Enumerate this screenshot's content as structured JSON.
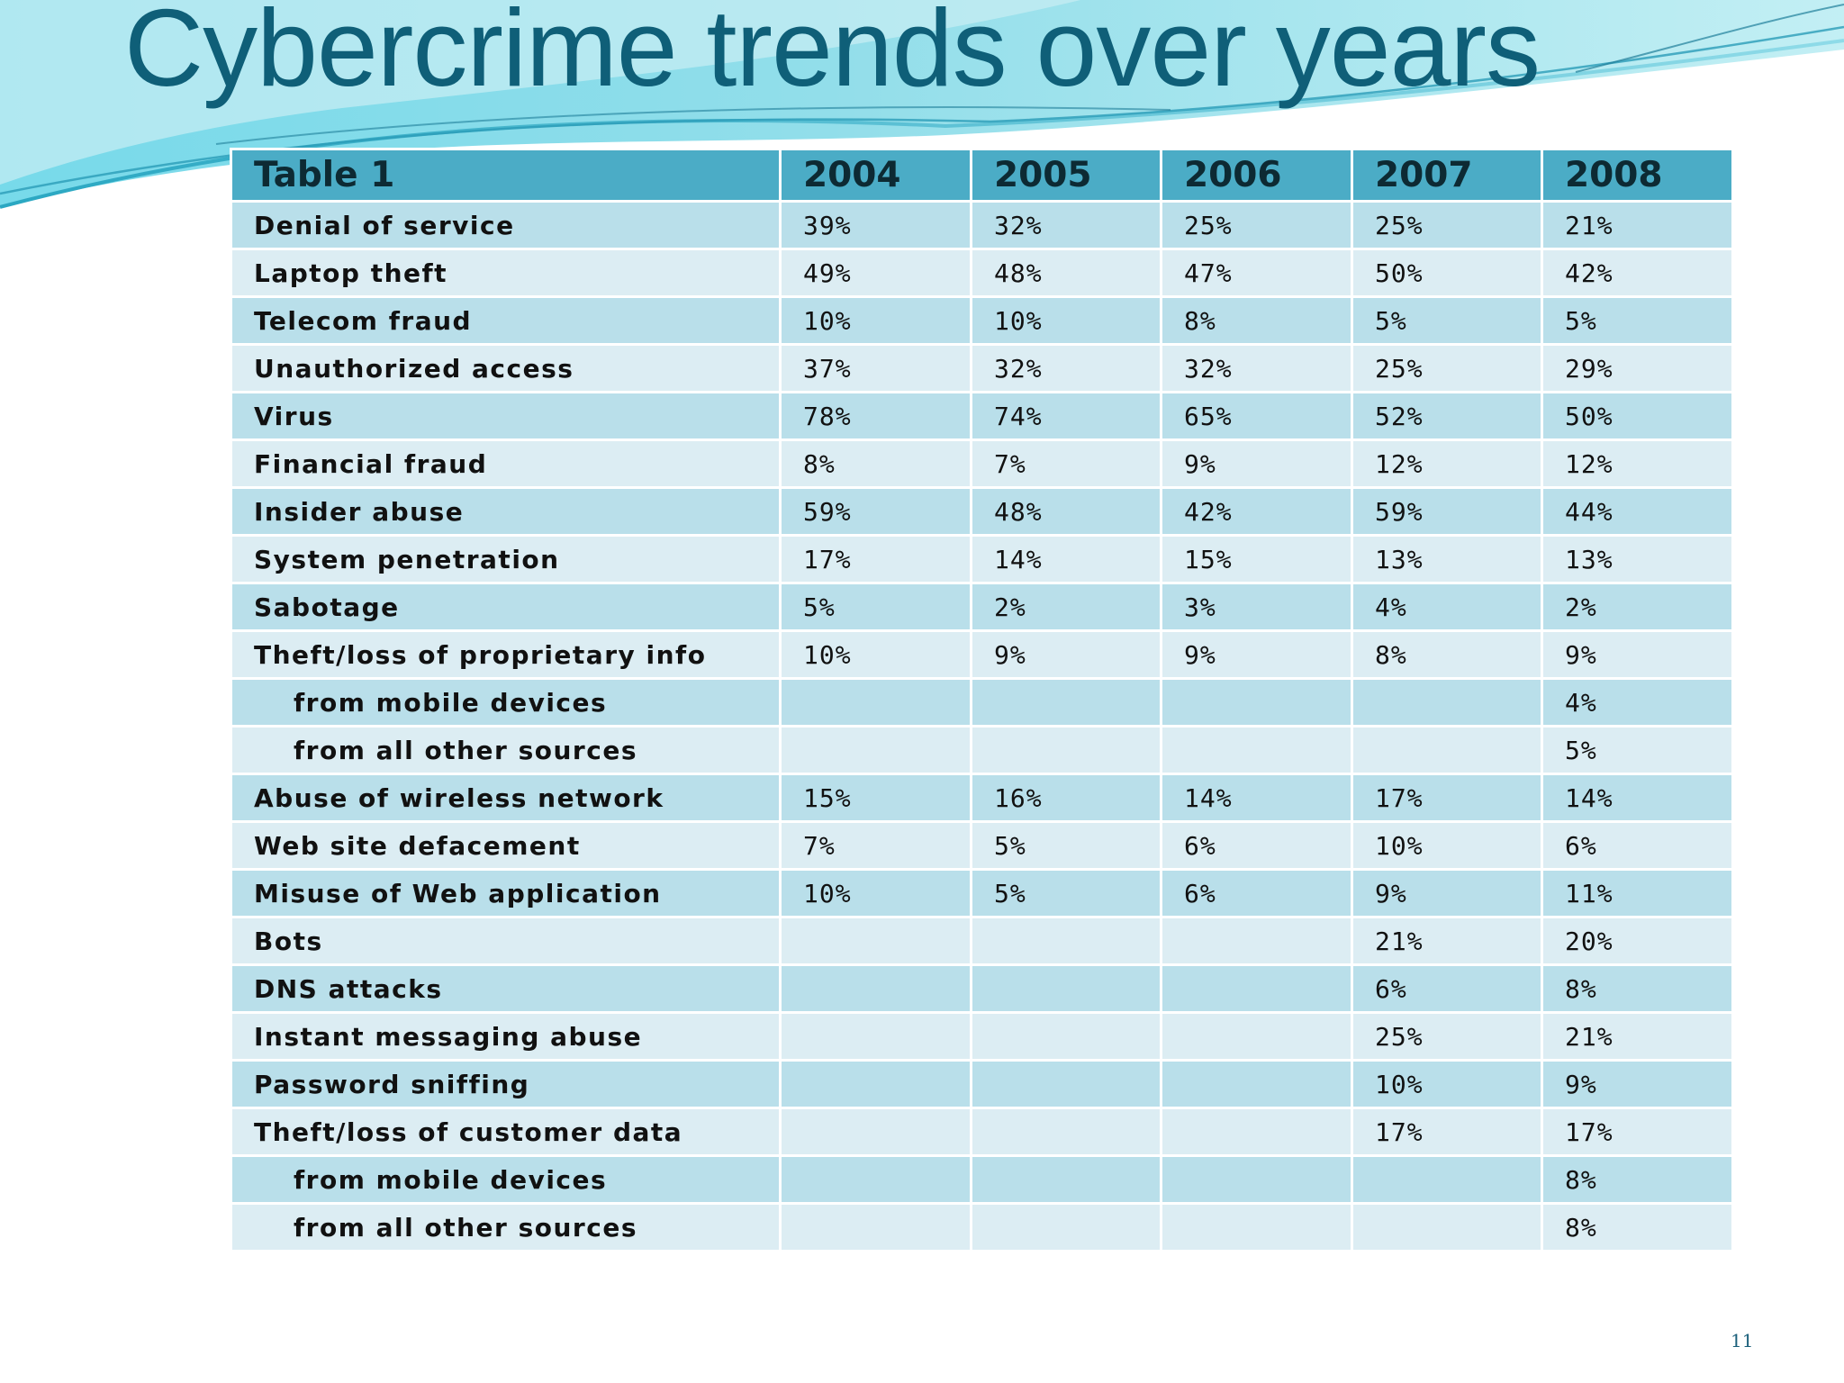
{
  "slide": {
    "title": "Cybercrime trends over years",
    "page_number": "11",
    "accent_color": "#4bacc6",
    "title_color": "#0f5f78"
  },
  "table": {
    "headers": [
      "Table 1",
      "2004",
      "2005",
      "2006",
      "2007",
      "2008"
    ],
    "rows": [
      {
        "label": "Denial of service",
        "sub": false,
        "values": [
          "39%",
          "32%",
          "25%",
          "25%",
          "21%"
        ]
      },
      {
        "label": "Laptop theft",
        "sub": false,
        "values": [
          "49%",
          "48%",
          "47%",
          "50%",
          "42%"
        ]
      },
      {
        "label": "Telecom fraud",
        "sub": false,
        "values": [
          "10%",
          "10%",
          "8%",
          "5%",
          "5%"
        ]
      },
      {
        "label": "Unauthorized access",
        "sub": false,
        "values": [
          "37%",
          "32%",
          "32%",
          "25%",
          "29%"
        ]
      },
      {
        "label": "Virus",
        "sub": false,
        "values": [
          "78%",
          "74%",
          "65%",
          "52%",
          "50%"
        ]
      },
      {
        "label": "Financial fraud",
        "sub": false,
        "values": [
          "8%",
          "7%",
          "9%",
          "12%",
          "12%"
        ]
      },
      {
        "label": "Insider abuse",
        "sub": false,
        "values": [
          "59%",
          "48%",
          "42%",
          "59%",
          "44%"
        ]
      },
      {
        "label": "System penetration",
        "sub": false,
        "values": [
          "17%",
          "14%",
          "15%",
          "13%",
          "13%"
        ]
      },
      {
        "label": "Sabotage",
        "sub": false,
        "values": [
          "5%",
          "2%",
          "3%",
          "4%",
          "2%"
        ]
      },
      {
        "label": "Theft/loss of proprietary info",
        "sub": false,
        "values": [
          "10%",
          "9%",
          "9%",
          "8%",
          "9%"
        ]
      },
      {
        "label": "from mobile devices",
        "sub": true,
        "values": [
          "",
          "",
          "",
          "",
          "4%"
        ]
      },
      {
        "label": "from all other sources",
        "sub": true,
        "values": [
          "",
          "",
          "",
          "",
          "5%"
        ]
      },
      {
        "label": "Abuse of wireless network",
        "sub": false,
        "values": [
          "15%",
          "16%",
          "14%",
          "17%",
          "14%"
        ]
      },
      {
        "label": "Web site defacement",
        "sub": false,
        "values": [
          "7%",
          "5%",
          "6%",
          "10%",
          "6%"
        ]
      },
      {
        "label": "Misuse of Web application",
        "sub": false,
        "values": [
          "10%",
          "5%",
          "6%",
          "9%",
          "11%"
        ]
      },
      {
        "label": "Bots",
        "sub": false,
        "values": [
          "",
          "",
          "",
          "21%",
          "20%"
        ]
      },
      {
        "label": "DNS attacks",
        "sub": false,
        "values": [
          "",
          "",
          "",
          "6%",
          "8%"
        ]
      },
      {
        "label": "Instant messaging abuse",
        "sub": false,
        "values": [
          "",
          "",
          "",
          "25%",
          "21%"
        ]
      },
      {
        "label": "Password sniffing",
        "sub": false,
        "values": [
          "",
          "",
          "",
          "10%",
          "9%"
        ]
      },
      {
        "label": "Theft/loss of customer data",
        "sub": false,
        "values": [
          "",
          "",
          "",
          "17%",
          "17%"
        ]
      },
      {
        "label": "from mobile devices",
        "sub": true,
        "values": [
          "",
          "",
          "",
          "",
          "8%"
        ]
      },
      {
        "label": "from all other sources",
        "sub": true,
        "values": [
          "",
          "",
          "",
          "",
          "8%"
        ]
      }
    ]
  }
}
